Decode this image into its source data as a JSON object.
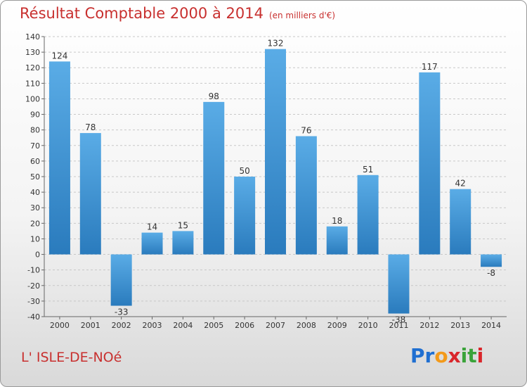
{
  "title": "Résultat Comptable 2000 à 2014",
  "unit_note": "(en milliers d'€)",
  "place_name": "L' ISLE-DE-NOé",
  "logo": {
    "text": "Proxiti",
    "letters": [
      {
        "ch": "P",
        "color": "#1f6fd1"
      },
      {
        "ch": "r",
        "color": "#1f6fd1"
      },
      {
        "ch": "o",
        "color": "#f39a1a"
      },
      {
        "ch": "x",
        "color": "#d9262b"
      },
      {
        "ch": "i",
        "color": "#3aa33a"
      },
      {
        "ch": "t",
        "color": "#3aa33a"
      },
      {
        "ch": "i",
        "color": "#d9262b"
      }
    ]
  },
  "colors": {
    "bar_top": "#5aace6",
    "bar_bottom": "#2a7bbd",
    "grid": "#c8c8c8",
    "title": "#c8302f"
  },
  "chart_data": {
    "type": "bar",
    "title": "Résultat Comptable 2000 à 2014",
    "ylabel": "en milliers d'€",
    "xlabel": "",
    "categories": [
      "2000",
      "2001",
      "2002",
      "2003",
      "2004",
      "2005",
      "2006",
      "2007",
      "2008",
      "2009",
      "2010",
      "2011",
      "2012",
      "2013",
      "2014"
    ],
    "values": [
      124,
      78,
      -33,
      14,
      15,
      98,
      50,
      132,
      76,
      18,
      51,
      -38,
      117,
      42,
      -8
    ],
    "ylim": [
      -40,
      140
    ],
    "yticks": [
      -40,
      -30,
      -20,
      -10,
      0,
      10,
      20,
      30,
      40,
      50,
      60,
      70,
      80,
      90,
      100,
      110,
      120,
      130,
      140
    ],
    "grid": true,
    "legend": "none"
  }
}
